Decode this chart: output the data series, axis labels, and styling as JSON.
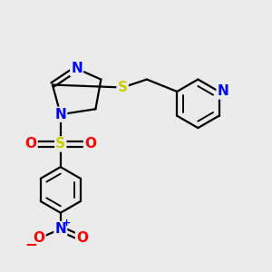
{
  "background_color": "#ebebeb",
  "bond_color": "#000000",
  "bond_width": 1.6,
  "atom_colors": {
    "N": "#0000ff",
    "S": "#cccc00",
    "O": "#ff0000",
    "C": "#000000"
  },
  "font_size_atom": 11,
  "figsize": [
    3.0,
    3.0
  ],
  "dpi": 100
}
